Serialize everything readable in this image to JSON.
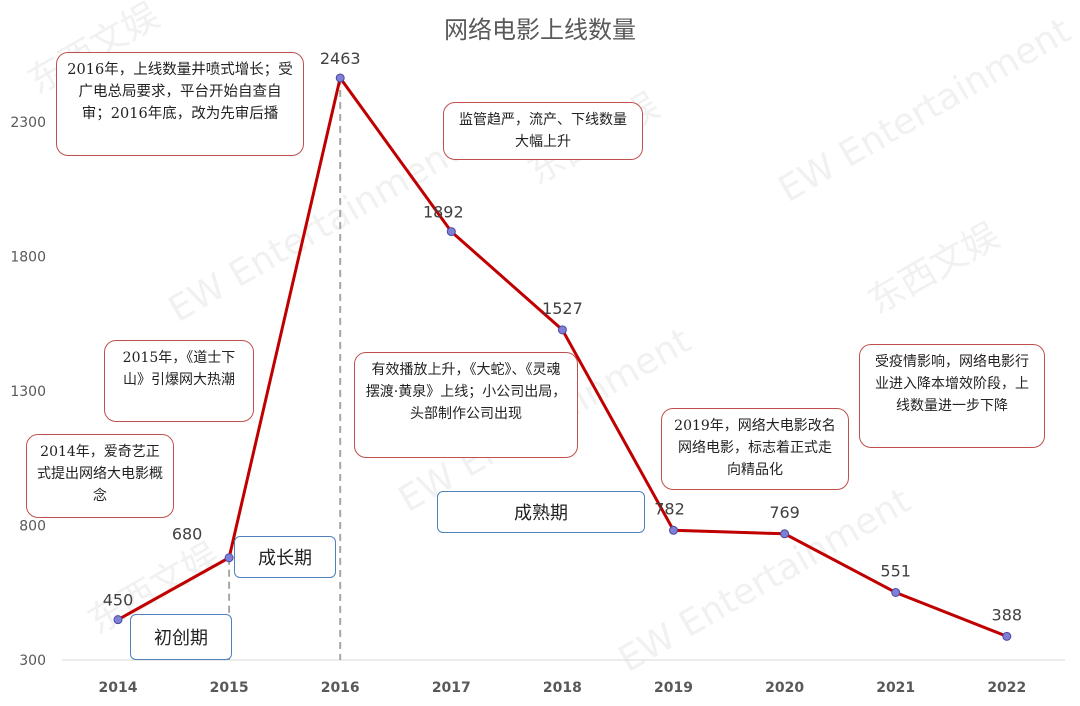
{
  "chart_data": {
    "type": "line",
    "title": "网络电影上线数量",
    "categories": [
      "2014",
      "2015",
      "2016",
      "2017",
      "2018",
      "2019",
      "2020",
      "2021",
      "2022"
    ],
    "values": [
      450,
      680,
      2463,
      1892,
      1527,
      782,
      769,
      551,
      388
    ],
    "ylim": [
      300,
      2500
    ],
    "yticks": [
      "300",
      "800",
      "1300",
      "1800",
      "2300"
    ],
    "xlabel": "",
    "ylabel": "",
    "grid": false,
    "line_color": "#c00000",
    "marker_color": "#7f7fd5"
  },
  "annotations": [
    "2016年，上线数量井喷式增长；受广电总局要求，平台开始自查自审；2016年底，改为先审后播",
    "监管趋严，流产、下线数量大幅上升",
    "2015年，《道士下山》引爆网大热潮",
    "2014年，爱奇艺正式提出网络大电影概念",
    "有效播放上升，《大蛇》、《灵魂摆渡·黄泉》上线；小公司出局，头部制作公司出现",
    "2019年，网络大电影改名网络电影，标志着正式走向精品化",
    "受疫情影响，网络电影行业进入降本增效阶段，上线数量进一步下降"
  ],
  "phases": [
    "初创期",
    "成长期",
    "成熟期"
  ],
  "watermark": {
    "cn": "东西文娱",
    "en": "EW Entertainment"
  },
  "colors": {
    "callout_border": "#c0504d",
    "phase_border": "#4f81bd",
    "dash": "#a6a6a6"
  }
}
